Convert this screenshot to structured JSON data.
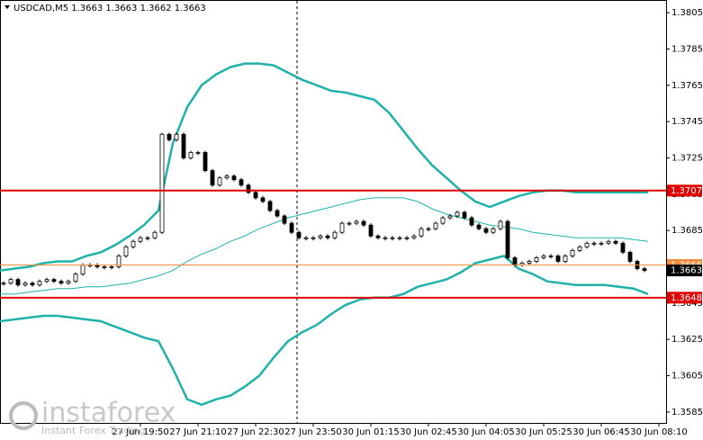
{
  "chart_data": {
    "type": "candlestick",
    "title": "USDCAD,M5  1.3663 1.3663 1.3662 1.3663",
    "watermark": "instaforex",
    "watermark_sub": "Instant Forex Trading",
    "ylim": [
      1.3579,
      1.3812
    ],
    "yticks": [
      1.3805,
      1.3785,
      1.3765,
      1.3745,
      1.3725,
      1.3705,
      1.3685,
      1.3665,
      1.3645,
      1.3625,
      1.3605,
      1.3585
    ],
    "xlim": [
      -0.5,
      92
    ],
    "xticks": [
      {
        "value": 19,
        "label": "27 Jun 19:50"
      },
      {
        "value": 27,
        "label": "27 Jun 21:10"
      },
      {
        "value": 35,
        "label": "27 Jun 22:30"
      },
      {
        "value": 43,
        "label": "27 Jun 23:50"
      },
      {
        "value": 51,
        "label": "30 Jun 01:15"
      },
      {
        "value": 59,
        "label": "30 Jun 02:45"
      },
      {
        "value": 67,
        "label": "30 Jun 04:05"
      },
      {
        "value": 75,
        "label": "30 Jun 05:25"
      },
      {
        "value": 83,
        "label": "30 Jun 06:45"
      },
      {
        "value": 91,
        "label": "30 Jun 08:10"
      }
    ],
    "candles": {
      "up_color": "#ffffff",
      "down_color": "#000000",
      "values": [
        1.3656,
        1.3658,
        1.3655,
        1.3656,
        1.3655,
        1.3657,
        1.3658,
        1.3657,
        1.3656,
        1.3657,
        1.3661,
        1.3666,
        1.3666,
        1.3665,
        1.3665,
        1.3665,
        1.3671,
        1.3676,
        1.3679,
        1.3681,
        1.3681,
        1.3684,
        1.3738,
        1.3735,
        1.3738,
        1.3725,
        1.3728,
        1.3728,
        1.3718,
        1.371,
        1.3714,
        1.3715,
        1.3713,
        1.371,
        1.3706,
        1.3703,
        1.3701,
        1.3696,
        1.3693,
        1.3689,
        1.3684,
        1.3681,
        1.3681,
        1.3681,
        1.3682,
        1.3681,
        1.3684,
        1.3689,
        1.3689,
        1.369,
        1.3688,
        1.3682,
        1.3681,
        1.3681,
        1.3681,
        1.3681,
        1.3681,
        1.3682,
        1.3686,
        1.3686,
        1.3689,
        1.3692,
        1.3693,
        1.3695,
        1.3692,
        1.3688,
        1.3686,
        1.3684,
        1.3686,
        1.369,
        1.367,
        1.3666,
        1.3667,
        1.3668,
        1.367,
        1.3671,
        1.3671,
        1.3668,
        1.3671,
        1.3674,
        1.3676,
        1.3678,
        1.3678,
        1.3678,
        1.3679,
        1.3678,
        1.3673,
        1.3668,
        1.3664,
        1.3663
      ]
    },
    "bands": [
      {
        "color": "#20b2aa",
        "width": 2.5,
        "values": [
          1.3663,
          1.3664,
          1.3665,
          1.3667,
          1.3668,
          1.3668,
          1.3671,
          1.3673,
          1.3677,
          1.3682,
          1.3688,
          1.3696,
          1.3733,
          1.3753,
          1.3765,
          1.3771,
          1.3775,
          1.3777,
          1.3777,
          1.3776,
          1.3772,
          1.3768,
          1.3765,
          1.3762,
          1.3761,
          1.3759,
          1.3757,
          1.375,
          1.374,
          1.373,
          1.3721,
          1.3714,
          1.3707,
          1.3701,
          1.3698,
          1.3701,
          1.3704,
          1.3706,
          1.3707,
          1.3707,
          1.3706,
          1.3706,
          1.3706,
          1.3706,
          1.3706,
          1.3706
        ]
      },
      {
        "color": "#20b2aa",
        "width": 1,
        "values": [
          1.365,
          1.365,
          1.3651,
          1.3652,
          1.3653,
          1.3653,
          1.3654,
          1.3654,
          1.3655,
          1.3656,
          1.3658,
          1.366,
          1.3663,
          1.3668,
          1.3672,
          1.3675,
          1.3679,
          1.3682,
          1.3686,
          1.3689,
          1.3692,
          1.3694,
          1.3696,
          1.3698,
          1.37,
          1.3702,
          1.3703,
          1.3703,
          1.3703,
          1.3701,
          1.3697,
          1.3694,
          1.3692,
          1.369,
          1.3688,
          1.3687,
          1.3686,
          1.3684,
          1.3683,
          1.3682,
          1.3681,
          1.3681,
          1.3681,
          1.3681,
          1.368,
          1.3679
        ]
      },
      {
        "color": "#20b2aa",
        "width": 2.5,
        "values": [
          1.3635,
          1.3636,
          1.3637,
          1.3638,
          1.3638,
          1.3637,
          1.3636,
          1.3635,
          1.3632,
          1.3629,
          1.3626,
          1.3624,
          1.3609,
          1.3592,
          1.3589,
          1.3592,
          1.3594,
          1.3599,
          1.3605,
          1.3615,
          1.3624,
          1.3629,
          1.3633,
          1.3639,
          1.3644,
          1.3647,
          1.3648,
          1.3648,
          1.365,
          1.3654,
          1.3656,
          1.3658,
          1.3662,
          1.3667,
          1.3669,
          1.3671,
          1.3664,
          1.3661,
          1.3657,
          1.3656,
          1.3655,
          1.3655,
          1.3655,
          1.3654,
          1.3653,
          1.365
        ]
      }
    ],
    "levels": [
      {
        "value": 1.3707,
        "color": "#e00000",
        "width": 2
      },
      {
        "value": 1.3648,
        "color": "#e00000",
        "width": 2
      },
      {
        "value": 1.3666,
        "color": "#f08c3c",
        "width": 1
      },
      {
        "value": 1.3663,
        "color": "#000000",
        "width": 0
      }
    ]
  }
}
